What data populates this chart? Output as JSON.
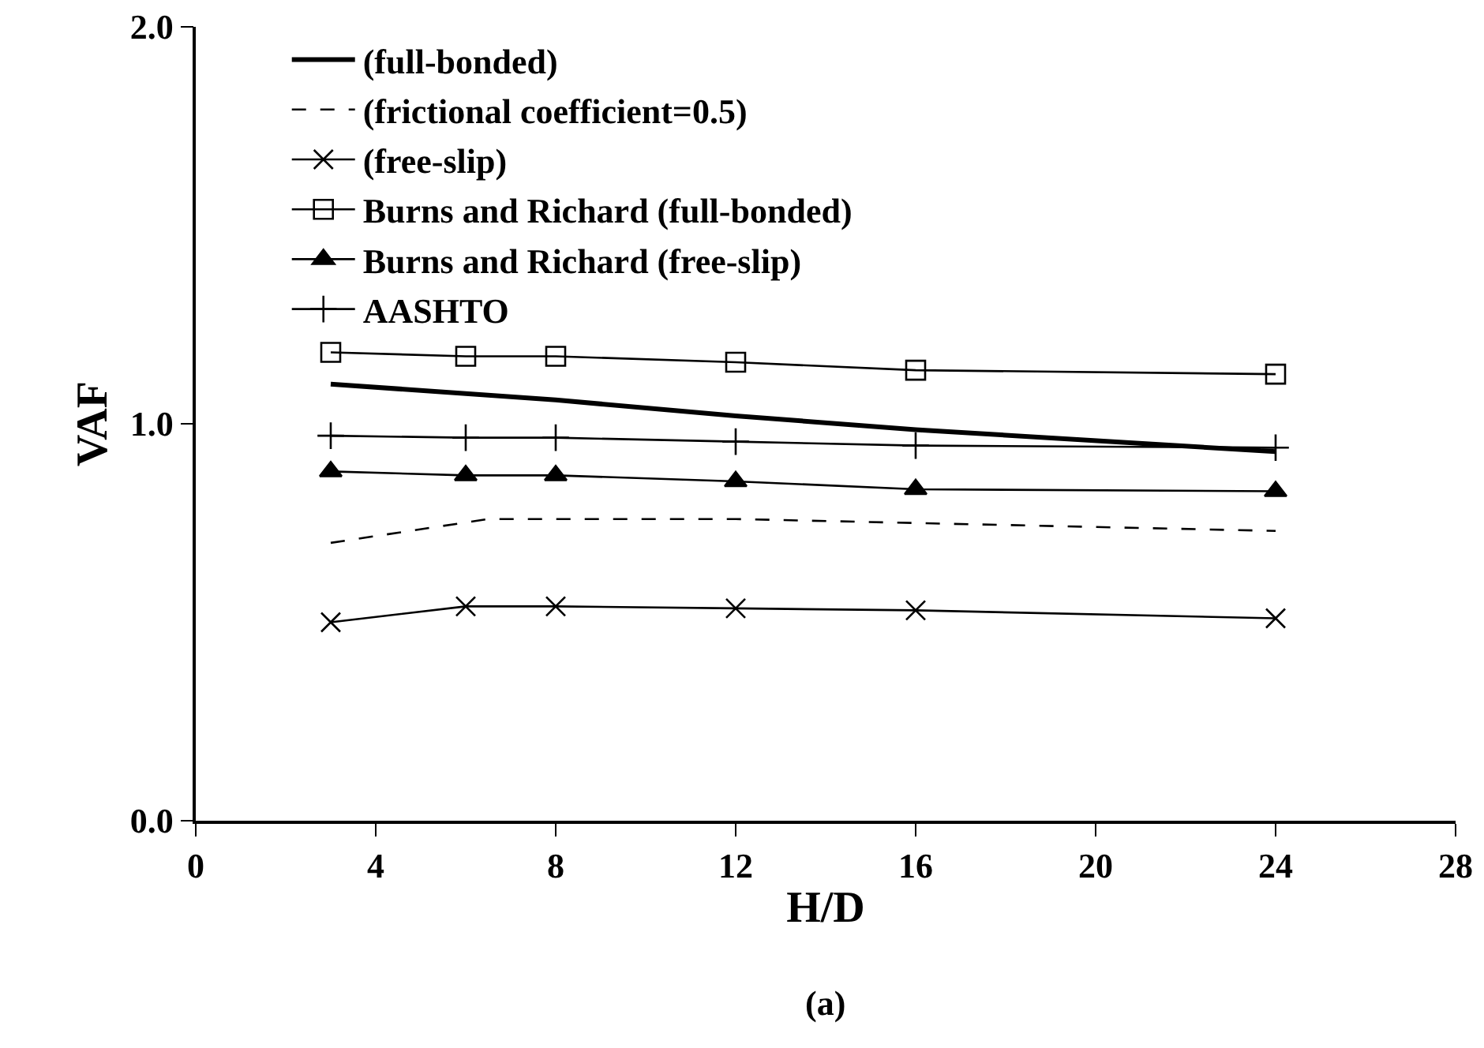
{
  "chart_data": {
    "type": "line",
    "xlabel": "H/D",
    "ylabel": "VAF",
    "annotations": [
      "(a)"
    ],
    "xlim": [
      0,
      28
    ],
    "xticks": [
      0,
      4,
      8,
      12,
      16,
      20,
      24,
      28
    ],
    "ylim": [
      0,
      2
    ],
    "yticks": [
      {
        "value": 0,
        "label": "0.0"
      },
      {
        "value": 1,
        "label": "1.0"
      },
      {
        "value": 2,
        "label": "2.0"
      }
    ],
    "grid": false,
    "legend": "top left",
    "series": [
      {
        "name": "(full-bonded)",
        "color": "#000000",
        "x": [
          3,
          8,
          12,
          16,
          24
        ],
        "values": [
          1.1,
          1.06,
          1.02,
          0.985,
          0.93
        ],
        "marker": "none",
        "line_style": "solid"
      },
      {
        "name": "(frictional coefficient=0.5)",
        "color": "#000000",
        "x": [
          3,
          6.5,
          8,
          12,
          16,
          24
        ],
        "values": [
          0.7,
          0.76,
          0.76,
          0.76,
          0.75,
          0.73
        ],
        "marker": "none",
        "line_style": "dashed"
      },
      {
        "name": "(free-slip)",
        "color": "#000000",
        "x": [
          3,
          6,
          8,
          12,
          16,
          24
        ],
        "values": [
          0.5,
          0.54,
          0.54,
          0.535,
          0.53,
          0.51
        ],
        "marker": "x",
        "line_style": "solid"
      },
      {
        "name": "Burns and Richard (full-bonded)",
        "color": "#000000",
        "x": [
          3,
          6,
          8,
          12,
          16,
          24
        ],
        "values": [
          1.18,
          1.17,
          1.17,
          1.155,
          1.135,
          1.125
        ],
        "marker": "square",
        "line_style": "solid"
      },
      {
        "name": "Burns and Richard (free-slip)",
        "color": "#000000",
        "x": [
          3,
          6,
          8,
          12,
          16,
          24
        ],
        "values": [
          0.88,
          0.87,
          0.87,
          0.855,
          0.835,
          0.83
        ],
        "marker": "triangle",
        "line_style": "solid"
      },
      {
        "name": "AASHTO",
        "color": "#000000",
        "x": [
          3,
          6,
          8,
          12,
          16,
          24
        ],
        "values": [
          0.97,
          0.965,
          0.965,
          0.955,
          0.945,
          0.94
        ],
        "marker": "cross",
        "line_style": "solid"
      }
    ]
  }
}
